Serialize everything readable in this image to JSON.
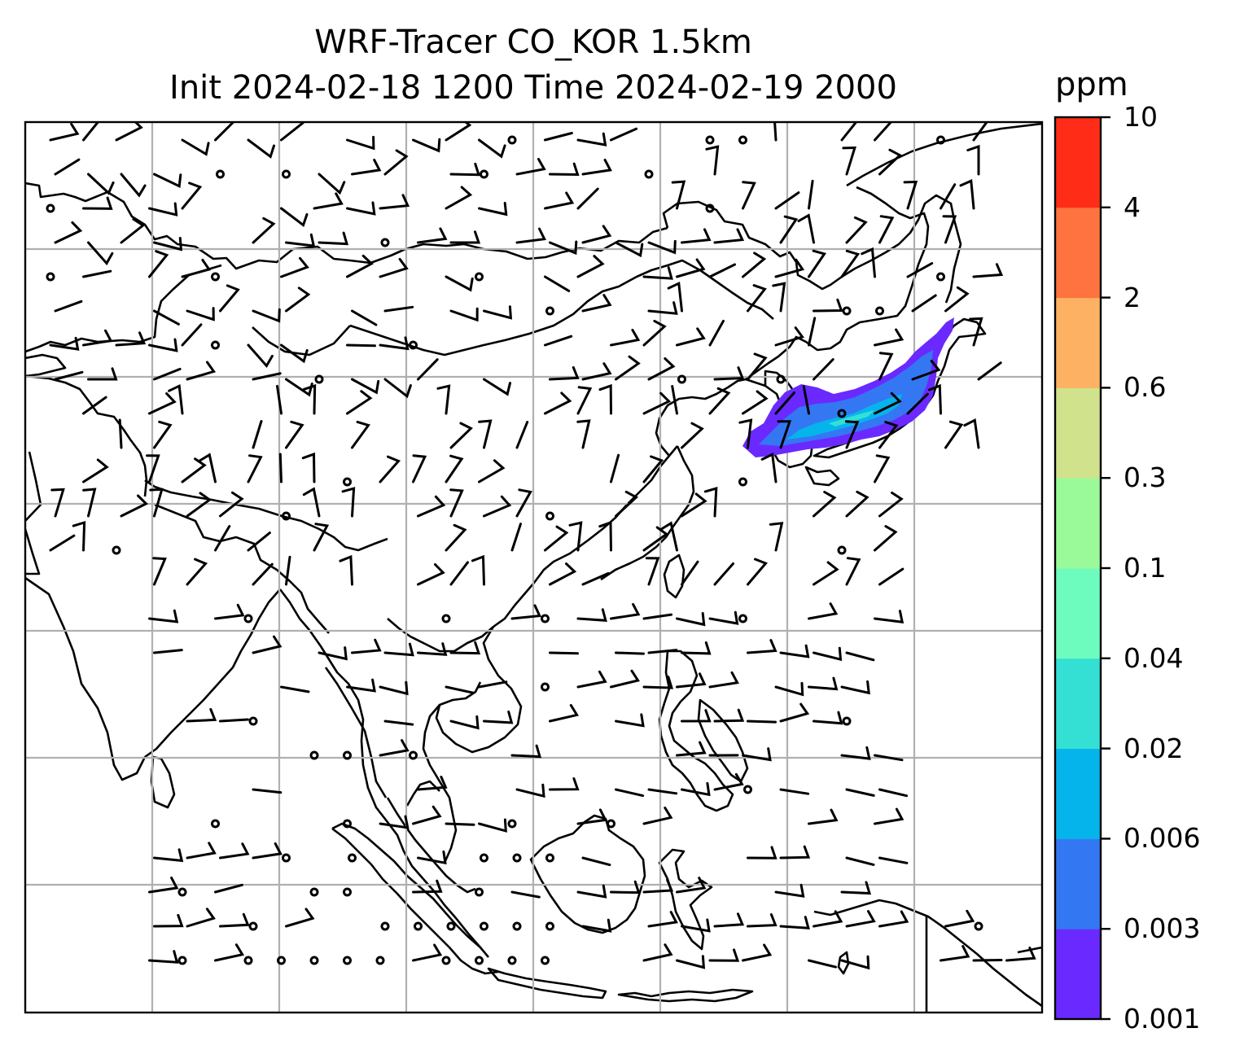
{
  "title": {
    "line1": "WRF-Tracer CO_KOR 1.5km",
    "line2": "Init 2024-02-18 1200 Time 2024-02-19 2000"
  },
  "colorbar": {
    "unit": "ppm",
    "levels": [
      "0.001",
      "0.003",
      "0.006",
      "0.02",
      "0.04",
      "0.1",
      "0.3",
      "0.6",
      "2",
      "4",
      "10"
    ],
    "colors": [
      "#6a2aff",
      "#3477f2",
      "#06b4ec",
      "#34e0d4",
      "#6efcbe",
      "#9afa9a",
      "#d0e28c",
      "#fcb163",
      "#fe7340",
      "#ff2d17"
    ]
  },
  "map": {
    "plume_colors": {
      "outer": "#6a2aff",
      "mid": "#3477f2",
      "inner": "#06b4ec",
      "core": "#34e0d4"
    },
    "gridline_color": "#b0b0b0",
    "coastline_color": "#000000"
  }
}
